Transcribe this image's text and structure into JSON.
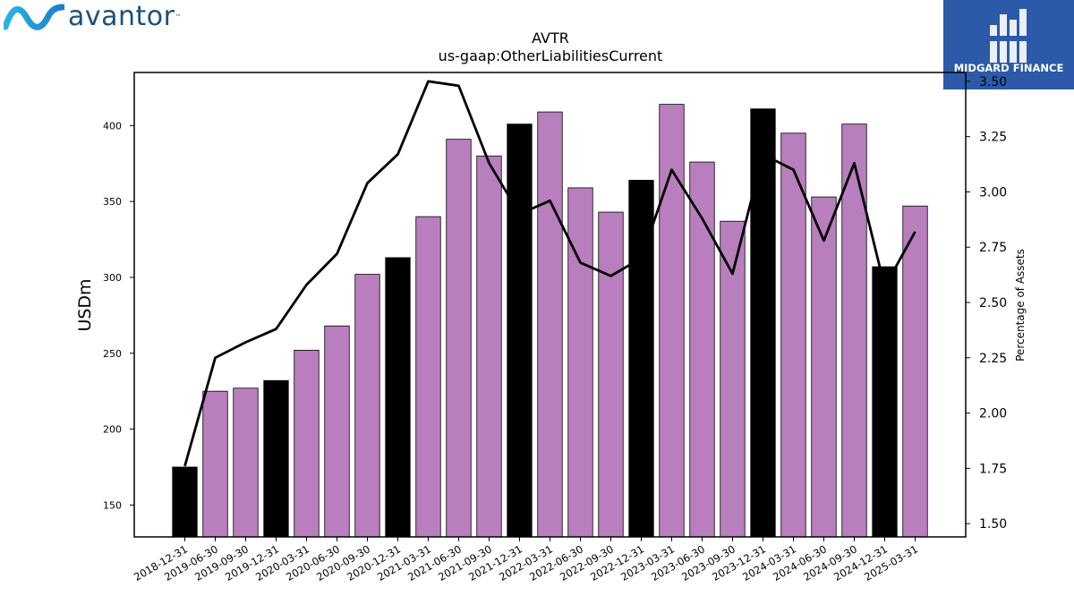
{
  "header": {
    "company_logo_text": "avantor",
    "company_logo_mark": "™",
    "partner_logo_text": "MIDGARD FINANCE"
  },
  "chart_data": {
    "type": "bar",
    "title": "AVTR",
    "subtitle": "us-gaap:OtherLiabilitiesCurrent",
    "xlabel": "",
    "ylabel": "USDm",
    "y2label": "Percentage of Assets",
    "ylim": [
      129,
      435
    ],
    "y2lim": [
      1.44,
      3.54
    ],
    "yticks": [
      150,
      200,
      250,
      300,
      350,
      400
    ],
    "y2ticks": [
      1.5,
      1.75,
      2.0,
      2.25,
      2.5,
      2.75,
      3.0,
      3.25,
      3.5
    ],
    "y2tick_labels": [
      "1.50",
      "1.75",
      "2.00",
      "2.25",
      "2.50",
      "2.75",
      "3.00",
      "3.25",
      "3.50"
    ],
    "grid": false,
    "categories": [
      "2018-12-31",
      "2019-06-30",
      "2019-09-30",
      "2019-12-31",
      "2020-03-31",
      "2020-06-30",
      "2020-09-30",
      "2020-12-31",
      "2021-03-31",
      "2021-06-30",
      "2021-09-30",
      "2021-12-31",
      "2022-03-31",
      "2022-06-30",
      "2022-09-30",
      "2022-12-31",
      "2023-03-31",
      "2023-06-30",
      "2023-09-30",
      "2023-12-31",
      "2024-03-31",
      "2024-06-30",
      "2024-09-30",
      "2024-12-31",
      "2025-03-31"
    ],
    "series": [
      {
        "kind": "bar",
        "axis": "left",
        "values": [
          175,
          225,
          227,
          232,
          252,
          268,
          302,
          313,
          340,
          391,
          380,
          401,
          409,
          359,
          343,
          364,
          414,
          376,
          337,
          411,
          395,
          353,
          401,
          307,
          347
        ],
        "colors": [
          "#000000",
          "#b97ebd",
          "#b97ebd",
          "#000000",
          "#b97ebd",
          "#b97ebd",
          "#b97ebd",
          "#000000",
          "#b97ebd",
          "#b97ebd",
          "#b97ebd",
          "#000000",
          "#b97ebd",
          "#b97ebd",
          "#b97ebd",
          "#000000",
          "#b97ebd",
          "#b97ebd",
          "#b97ebd",
          "#000000",
          "#b97ebd",
          "#b97ebd",
          "#b97ebd",
          "#000000",
          "#b97ebd"
        ]
      },
      {
        "kind": "line",
        "axis": "right",
        "color": "#000000",
        "values": [
          1.76,
          2.25,
          2.32,
          2.38,
          2.58,
          2.72,
          3.04,
          3.17,
          3.5,
          3.48,
          3.13,
          2.9,
          2.96,
          2.68,
          2.62,
          2.7,
          3.1,
          2.88,
          2.63,
          3.17,
          3.1,
          2.78,
          3.13,
          2.57,
          2.82
        ]
      }
    ]
  }
}
